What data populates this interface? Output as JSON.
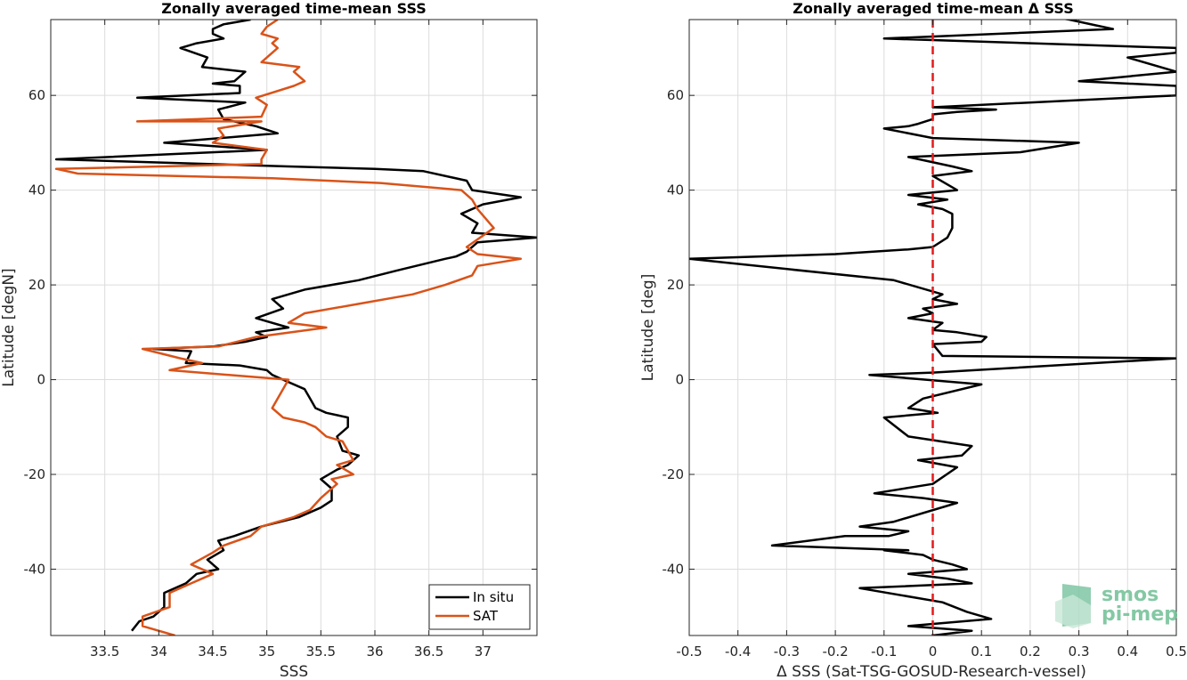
{
  "chart_data": [
    {
      "type": "line",
      "title": "Zonally averaged time-mean SSS",
      "xlabel": "SSS",
      "ylabel": "Latitude [degN]",
      "xlim": [
        33.0,
        37.5
      ],
      "ylim": [
        -54,
        76
      ],
      "xticks": [
        33.5,
        34,
        34.5,
        35,
        35.5,
        36,
        36.5,
        37
      ],
      "yticks": [
        -40,
        -20,
        0,
        20,
        40,
        60
      ],
      "grid": true,
      "legend": "bottom-right",
      "series": [
        {
          "name": "In situ",
          "color": "#000000",
          "x": [
            33.75,
            33.82,
            33.95,
            34.05,
            34.05,
            34.25,
            34.35,
            34.55,
            34.45,
            34.6,
            34.55,
            34.7,
            34.95,
            35.3,
            35.5,
            35.6,
            35.6,
            35.5,
            35.65,
            35.75,
            35.85,
            35.7,
            35.65,
            35.75,
            35.75,
            35.55,
            35.45,
            35.4,
            35.35,
            35.15,
            35.05,
            35.0,
            34.75,
            34.25,
            34.3,
            33.95,
            34.5,
            34.8,
            35.0,
            34.9,
            35.2,
            34.9,
            35.15,
            35.05,
            35.35,
            35.85,
            36.2,
            36.65,
            36.75,
            36.85,
            36.95,
            37.5,
            36.9,
            36.95,
            36.8,
            37.0,
            37.35,
            36.9,
            36.85,
            36.45,
            36.0,
            35.2,
            33.05,
            35.0,
            34.05,
            35.1,
            34.9,
            34.6,
            34.55,
            34.8,
            33.8,
            34.75,
            34.75,
            34.5,
            34.7,
            34.8,
            34.4,
            34.45,
            34.2,
            34.35,
            34.6,
            34.5,
            34.5,
            34.6,
            34.85
          ],
          "y": [
            -53,
            -51,
            -50,
            -48,
            -45,
            -43,
            -41,
            -40,
            -38,
            -36,
            -34,
            -33,
            -31,
            -29,
            -27,
            -25.5,
            -23,
            -21,
            -19,
            -18,
            -16,
            -15,
            -12,
            -10,
            -8,
            -7,
            -6,
            -4,
            -2,
            0,
            1,
            2,
            3,
            3.5,
            6,
            6.5,
            7,
            8,
            9,
            10,
            11,
            13,
            15,
            17,
            19,
            21,
            23,
            25.5,
            26,
            27,
            29,
            30,
            31,
            33,
            35,
            37,
            38.5,
            40,
            42,
            44,
            44.5,
            45,
            46.5,
            48.5,
            50,
            52,
            53.5,
            55,
            57,
            58.5,
            59.5,
            60.5,
            62,
            62.5,
            63,
            65,
            66,
            68,
            70,
            71,
            72,
            73,
            74,
            75,
            76
          ]
        },
        {
          "name": "SAT",
          "color": "#D95319",
          "x": [
            34.15,
            33.85,
            33.85,
            34.1,
            34.1,
            34.3,
            34.5,
            34.3,
            34.5,
            34.6,
            34.85,
            34.95,
            35.25,
            35.4,
            35.5,
            35.65,
            35.6,
            35.8,
            35.65,
            35.8,
            35.75,
            35.7,
            35.55,
            35.45,
            35.35,
            35.15,
            35.05,
            35.2,
            34.1,
            34.4,
            34.2,
            33.85,
            34.55,
            34.9,
            35.55,
            35.2,
            35.35,
            35.85,
            36.35,
            36.65,
            36.9,
            36.95,
            37.35,
            36.95,
            36.85,
            37.1,
            36.95,
            36.9,
            36.8,
            36.05,
            35.05,
            33.25,
            33.05,
            34.95,
            34.95,
            35.0,
            34.5,
            34.6,
            34.55,
            34.95,
            33.8,
            34.95,
            35.0,
            34.9,
            35.25,
            35.35,
            35.25,
            35.3,
            34.95,
            35.0,
            35.1,
            35.05,
            35.1,
            34.95,
            35.0,
            35.1
          ],
          "y": [
            -54,
            -52,
            -50,
            -48,
            -45,
            -43,
            -41,
            -39,
            -36.5,
            -35,
            -33,
            -31,
            -29,
            -27.5,
            -25,
            -22,
            -21,
            -20,
            -18,
            -17,
            -15,
            -13,
            -12,
            -10,
            -9,
            -8,
            -6,
            0,
            2,
            3.5,
            4.5,
            6.5,
            7,
            9,
            11,
            12,
            14,
            16,
            18,
            20,
            22,
            24,
            25.5,
            26.5,
            28,
            32,
            36,
            38,
            40,
            41.5,
            42.5,
            43.5,
            44.5,
            45.5,
            46.5,
            48.5,
            50,
            51.5,
            53,
            54.5,
            54.5,
            55.5,
            58,
            59.5,
            62,
            63,
            65,
            66,
            67,
            68,
            70,
            71,
            72,
            73,
            74.5,
            76
          ]
        }
      ]
    },
    {
      "type": "line",
      "title": "Zonally averaged time-mean Δ SSS",
      "xlabel": "Δ SSS (Sat-TSG-GOSUD-Research-vessel)",
      "ylabel": "Latitude [deg]",
      "xlim": [
        -0.5,
        0.5
      ],
      "ylim": [
        -54,
        76
      ],
      "xticks": [
        -0.5,
        -0.4,
        -0.3,
        -0.2,
        -0.1,
        0,
        0.1,
        0.2,
        0.3,
        0.4,
        0.5
      ],
      "yticks": [
        -40,
        -20,
        0,
        20,
        40,
        60
      ],
      "grid": true,
      "reference_line": {
        "x": 0,
        "color": "#E41A1C",
        "style": "dashed"
      },
      "series": [
        {
          "color": "#000000",
          "x": [
            0.0,
            0.08,
            -0.05,
            0.12,
            0.07,
            0.02,
            -0.15,
            0.08,
            0.03,
            -0.05,
            0.07,
            0.04,
            0.0,
            -0.02,
            -0.1,
            -0.05,
            -0.33,
            -0.18,
            -0.09,
            -0.05,
            -0.15,
            -0.08,
            0.05,
            -0.02,
            -0.12,
            0.0,
            0.05,
            -0.03,
            0.06,
            0.08,
            -0.05,
            -0.1,
            0.01,
            -0.05,
            -0.02,
            0.1,
            -0.13,
            0.0,
            0.5,
            0.02,
            0.0,
            0.1,
            0.11,
            0.05,
            0.0,
            0.02,
            -0.05,
            0.0,
            -0.02,
            0.05,
            0.0,
            0.02,
            -0.08,
            -0.5,
            -0.2,
            -0.05,
            0.0,
            0.03,
            0.04,
            0.04,
            0.02,
            -0.03,
            0.03,
            -0.05,
            0.05,
            0.0,
            0.08,
            0.04,
            -0.05,
            0.18,
            0.3,
            0.0,
            -0.1,
            -0.05,
            -0.03,
            0.0,
            0.0,
            0.05,
            0.13,
            0.0,
            0.5,
            0.5,
            0.3,
            0.5,
            0.4,
            0.5,
            0.5,
            -0.1,
            0.37,
            0.28,
            0.25
          ],
          "y": [
            -54,
            -53,
            -52,
            -50.5,
            -49,
            -47,
            -44,
            -43,
            -42,
            -41,
            -40,
            -39,
            -38,
            -37,
            -36,
            -36,
            -35,
            -33,
            -33,
            -32,
            -31,
            -30,
            -26,
            -25,
            -24,
            -22,
            -18.5,
            -17,
            -16,
            -14,
            -12,
            -8,
            -7,
            -6,
            -4,
            -1,
            1,
            1.5,
            4.5,
            5,
            7.5,
            8,
            9,
            10,
            10.5,
            12,
            13,
            14,
            15,
            16,
            17,
            18,
            21,
            25.5,
            26.5,
            27.5,
            28,
            30,
            32,
            35,
            36,
            37,
            38,
            39,
            40,
            43,
            44,
            45,
            47,
            48,
            50,
            51,
            53,
            53.5,
            54,
            55,
            56,
            56.5,
            57,
            57.5,
            60,
            62,
            63,
            65,
            68,
            69,
            70,
            72,
            74,
            76,
            76.5
          ]
        }
      ]
    },
    {
      "type": "legend",
      "entries": [
        "In situ",
        "SAT"
      ]
    },
    {
      "type": "logo",
      "line1": "smos",
      "line2": "pi-mep"
    }
  ]
}
